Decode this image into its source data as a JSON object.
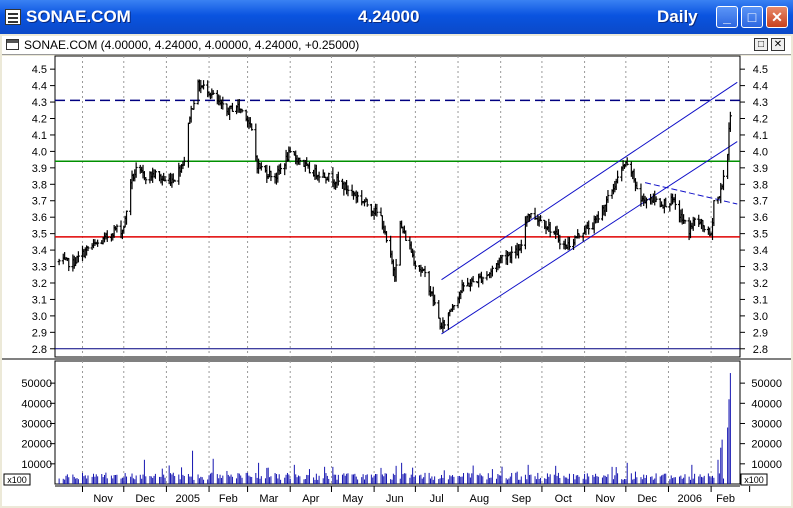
{
  "window": {
    "title": "SONAE.COM",
    "last_price": "4.24000",
    "period": "Daily",
    "buttons": {
      "minimize": "_",
      "maximize": "□",
      "close": "✕"
    }
  },
  "chart_window": {
    "header": "SONAE.COM (4.00000, 4.24000, 4.00000, 4.24000, +0.25000)",
    "buttons": {
      "maximize": "□",
      "close": "✕"
    }
  },
  "colors": {
    "bars": "#000000",
    "volume": "#1515B0",
    "channel": "#1010C8",
    "support": "#E00000",
    "resistance": "#009000",
    "dashed": "#000080"
  },
  "chart_data": [
    {
      "type": "ohlc",
      "x_labels": [
        "Nov",
        "Dec",
        "2005",
        "Feb",
        "Mar",
        "Apr",
        "May",
        "Jun",
        "Jul",
        "Aug",
        "Sep",
        "Oct",
        "Nov",
        "Dec",
        "2006",
        "Feb"
      ],
      "y_ticks": [
        2.8,
        2.9,
        3.0,
        3.1,
        3.2,
        3.3,
        3.4,
        3.5,
        3.6,
        3.7,
        3.8,
        3.9,
        4.0,
        4.1,
        4.2,
        4.3,
        4.4,
        4.5
      ],
      "ylim": [
        2.75,
        4.58
      ],
      "close_path": [
        [
          "2004-10-15",
          3.33
        ],
        [
          "2004-10-25",
          3.32
        ],
        [
          "2004-11-05",
          3.41
        ],
        [
          "2004-11-15",
          3.45
        ],
        [
          "2004-11-25",
          3.53
        ],
        [
          "2004-11-30",
          3.52
        ],
        [
          "2004-12-02",
          3.58
        ],
        [
          "2004-12-06",
          3.82
        ],
        [
          "2004-12-10",
          3.88
        ],
        [
          "2004-12-17",
          3.85
        ],
        [
          "2004-12-24",
          3.86
        ],
        [
          "2004-12-31",
          3.82
        ],
        [
          "2005-01-07",
          3.84
        ],
        [
          "2005-01-14",
          3.95
        ],
        [
          "2005-01-18",
          4.22
        ],
        [
          "2005-01-24",
          4.4
        ],
        [
          "2005-01-31",
          4.38
        ],
        [
          "2005-02-07",
          4.3
        ],
        [
          "2005-02-14",
          4.24
        ],
        [
          "2005-02-21",
          4.28
        ],
        [
          "2005-02-28",
          4.22
        ],
        [
          "2005-03-04",
          4.12
        ],
        [
          "2005-03-08",
          3.92
        ],
        [
          "2005-03-15",
          3.87
        ],
        [
          "2005-03-22",
          3.85
        ],
        [
          "2005-03-31",
          3.98
        ],
        [
          "2005-04-08",
          3.95
        ],
        [
          "2005-04-15",
          3.88
        ],
        [
          "2005-04-25",
          3.86
        ],
        [
          "2005-05-05",
          3.82
        ],
        [
          "2005-05-16",
          3.75
        ],
        [
          "2005-05-27",
          3.68
        ],
        [
          "2005-06-06",
          3.6
        ],
        [
          "2005-06-10",
          3.45
        ],
        [
          "2005-06-16",
          3.26
        ],
        [
          "2005-06-20",
          3.55
        ],
        [
          "2005-06-27",
          3.42
        ],
        [
          "2005-07-01",
          3.32
        ],
        [
          "2005-07-08",
          3.25
        ],
        [
          "2005-07-14",
          3.1
        ],
        [
          "2005-07-20",
          2.92
        ],
        [
          "2005-07-27",
          3.05
        ],
        [
          "2005-08-05",
          3.18
        ],
        [
          "2005-08-15",
          3.22
        ],
        [
          "2005-08-24",
          3.26
        ],
        [
          "2005-09-02",
          3.36
        ],
        [
          "2005-09-09",
          3.38
        ],
        [
          "2005-09-15",
          3.39
        ],
        [
          "2005-09-20",
          3.62
        ],
        [
          "2005-09-27",
          3.6
        ],
        [
          "2005-10-05",
          3.55
        ],
        [
          "2005-10-12",
          3.48
        ],
        [
          "2005-10-18",
          3.42
        ],
        [
          "2005-10-24",
          3.46
        ],
        [
          "2005-10-31",
          3.52
        ],
        [
          "2005-11-07",
          3.55
        ],
        [
          "2005-11-15",
          3.66
        ],
        [
          "2005-11-22",
          3.78
        ],
        [
          "2005-11-30",
          3.92
        ],
        [
          "2005-12-05",
          3.88
        ],
        [
          "2005-12-12",
          3.7
        ],
        [
          "2005-12-19",
          3.72
        ],
        [
          "2005-12-27",
          3.68
        ],
        [
          "2006-01-04",
          3.7
        ],
        [
          "2006-01-10",
          3.6
        ],
        [
          "2006-01-16",
          3.52
        ],
        [
          "2006-01-20",
          3.58
        ],
        [
          "2006-01-26",
          3.55
        ],
        [
          "2006-02-01",
          3.48
        ],
        [
          "2006-02-03",
          3.7
        ],
        [
          "2006-02-07",
          3.72
        ],
        [
          "2006-02-10",
          3.85
        ],
        [
          "2006-02-13",
          3.99
        ],
        [
          "2006-02-15",
          4.24
        ]
      ]
    },
    {
      "type": "bar",
      "series_name": "volume",
      "y_ticks": [
        10000,
        20000,
        30000,
        40000,
        50000
      ],
      "ylim": [
        0,
        58000
      ],
      "unit_label": "x100",
      "typical_volume": [
        2000,
        8000
      ],
      "spikes": [
        [
          "2004-12-16",
          12000
        ],
        [
          "2005-01-20",
          16500
        ],
        [
          "2005-02-04",
          12500
        ],
        [
          "2005-03-09",
          10500
        ],
        [
          "2005-04-04",
          9500
        ],
        [
          "2005-05-02",
          8500
        ],
        [
          "2005-06-17",
          9000
        ],
        [
          "2005-06-21",
          10500
        ],
        [
          "2005-09-21",
          9500
        ],
        [
          "2005-10-11",
          9000
        ],
        [
          "2005-11-21",
          8500
        ],
        [
          "2005-12-02",
          10500
        ],
        [
          "2006-01-18",
          9500
        ],
        [
          "2006-02-06",
          12000
        ],
        [
          "2006-02-08",
          18000
        ],
        [
          "2006-02-09",
          22000
        ],
        [
          "2006-02-13",
          28000
        ],
        [
          "2006-02-14",
          42000
        ],
        [
          "2006-02-15",
          55000
        ]
      ]
    }
  ],
  "annotations": {
    "dashed_level": 4.31,
    "resistance_level": 3.94,
    "support_level": 3.48,
    "floor_level": 2.8,
    "channel_lower": [
      [
        "2005-07-20",
        2.89
      ],
      [
        "2006-02-20",
        4.06
      ]
    ],
    "channel_upper": [
      [
        "2005-07-20",
        3.22
      ],
      [
        "2006-02-20",
        4.42
      ]
    ],
    "down_trend": [
      [
        "2005-12-15",
        3.81
      ],
      [
        "2006-02-20",
        3.68
      ]
    ]
  }
}
